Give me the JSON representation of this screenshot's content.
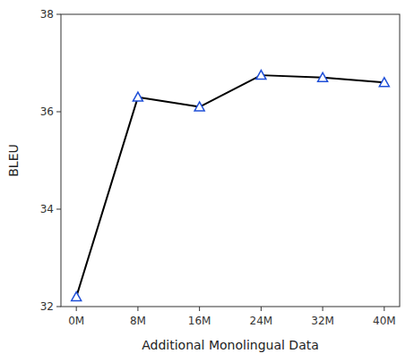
{
  "chart_data": {
    "type": "line",
    "x": [
      0,
      8,
      16,
      24,
      32,
      40
    ],
    "values": [
      32.2,
      36.3,
      36.1,
      36.75,
      36.7,
      36.6
    ],
    "xlabel": "Additional Monolingual Data",
    "ylabel": "BLEU",
    "xlim": [
      -2,
      42
    ],
    "xticks": [
      {
        "value": 0,
        "label": "0M"
      },
      {
        "value": 8,
        "label": "8M"
      },
      {
        "value": 16,
        "label": "16M"
      },
      {
        "value": 24,
        "label": "24M"
      },
      {
        "value": 32,
        "label": "32M"
      },
      {
        "value": 40,
        "label": "40M"
      }
    ],
    "ylim": [
      32,
      38
    ],
    "yticks": [
      32,
      34,
      36,
      38
    ],
    "grid": false,
    "color": "#000000",
    "marker": "triangle"
  }
}
